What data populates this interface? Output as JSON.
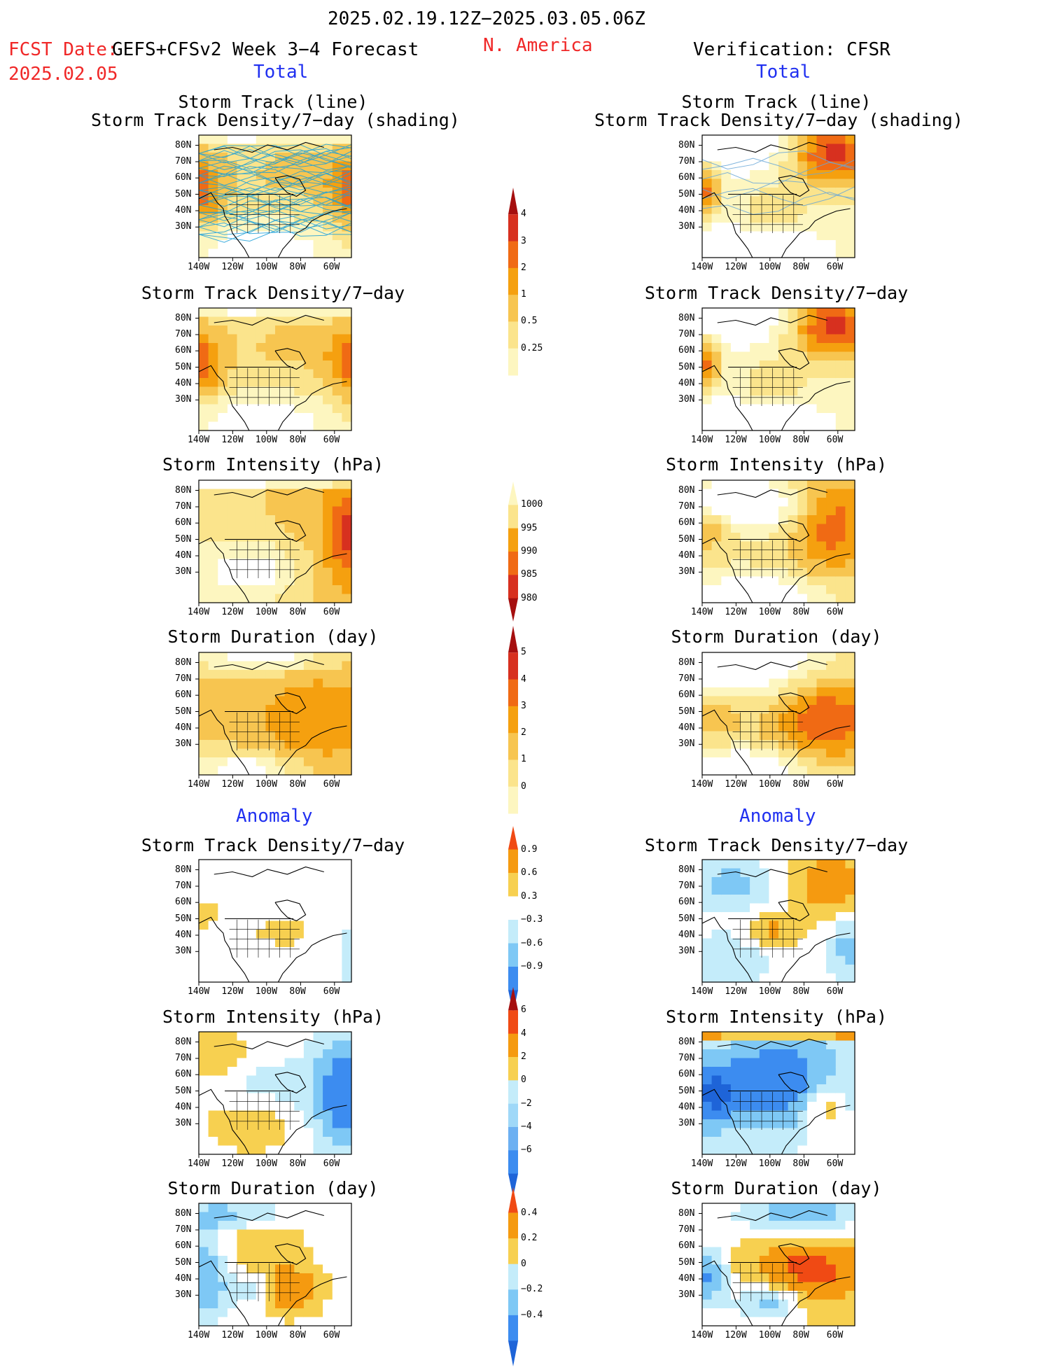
{
  "header": {
    "period": "2025.02.19.12Z−2025.03.05.06Z",
    "region": "N. America",
    "fcst_label": "FCST Date:",
    "fcst_model": "GEFS+CFSv2 Week 3−4 Forecast",
    "fcst_date": "2025.02.05",
    "verification": "Verification: CFSR"
  },
  "sections": {
    "total": "Total",
    "anomaly": "Anomaly"
  },
  "panel_titles": {
    "track_line": "Storm Track (line)",
    "track_shading": "Storm Track Density/7−day (shading)",
    "density": "Storm Track Density/7−day",
    "intensity": "Storm Intensity (hPa)",
    "duration": "Storm Duration (day)"
  },
  "axes": {
    "lat_ticks": [
      "80N",
      "70N",
      "60N",
      "50N",
      "40N",
      "30N"
    ],
    "lon_ticks": [
      "140W",
      "120W",
      "100W",
      "80W",
      "60W"
    ]
  },
  "chart_data": [
    {
      "type": "heatmap",
      "column": "GEFS+CFSv2 Week 3−4 Forecast",
      "section": "Total",
      "title": "Storm Track (line) / Storm Track Density/7−day (shading)",
      "xlim": [
        "140W",
        "50W"
      ],
      "ylim": [
        "25N",
        "85N"
      ]
    },
    {
      "type": "heatmap",
      "column": "Verification: CFSR",
      "section": "Total",
      "title": "Storm Track (line) / Storm Track Density/7−day (shading)",
      "xlim": [
        "140W",
        "50W"
      ],
      "ylim": [
        "25N",
        "85N"
      ]
    },
    {
      "type": "heatmap",
      "column": "GEFS+CFSv2 Week 3−4 Forecast",
      "section": "Total",
      "title": "Storm Track Density/7−day"
    },
    {
      "type": "heatmap",
      "column": "Verification: CFSR",
      "section": "Total",
      "title": "Storm Track Density/7−day"
    },
    {
      "type": "heatmap",
      "column": "GEFS+CFSv2 Week 3−4 Forecast",
      "section": "Total",
      "title": "Storm Intensity (hPa)"
    },
    {
      "type": "heatmap",
      "column": "Verification: CFSR",
      "section": "Total",
      "title": "Storm Intensity (hPa)"
    },
    {
      "type": "heatmap",
      "column": "GEFS+CFSv2 Week 3−4 Forecast",
      "section": "Total",
      "title": "Storm Duration (day)"
    },
    {
      "type": "heatmap",
      "column": "Verification: CFSR",
      "section": "Total",
      "title": "Storm Duration (day)"
    },
    {
      "type": "heatmap",
      "column": "GEFS+CFSv2 Week 3−4 Forecast",
      "section": "Anomaly",
      "title": "Storm Track Density/7−day"
    },
    {
      "type": "heatmap",
      "column": "Verification: CFSR",
      "section": "Anomaly",
      "title": "Storm Track Density/7−day"
    },
    {
      "type": "heatmap",
      "column": "GEFS+CFSv2 Week 3−4 Forecast",
      "section": "Anomaly",
      "title": "Storm Intensity (hPa)"
    },
    {
      "type": "heatmap",
      "column": "Verification: CFSR",
      "section": "Anomaly",
      "title": "Storm Intensity (hPa)"
    },
    {
      "type": "heatmap",
      "column": "GEFS+CFSv2 Week 3−4 Forecast",
      "section": "Anomaly",
      "title": "Storm Duration (day)"
    },
    {
      "type": "heatmap",
      "column": "Verification: CFSR",
      "section": "Anomaly",
      "title": "Storm Duration (day)"
    }
  ],
  "colorbars": [
    {
      "id": "density_total",
      "labels": [
        "4",
        "3",
        "2",
        "1",
        "0.5",
        "0.25"
      ],
      "colors": [
        "#a50f0f",
        "#d7301f",
        "#f06a14",
        "#f5a00f",
        "#f7c550",
        "#fbe48c",
        "#fdf6c0"
      ]
    },
    {
      "id": "intensity_total",
      "labels": [
        "1000",
        "995",
        "990",
        "985",
        "980"
      ],
      "colors": [
        "#fdf6c0",
        "#fbe48c",
        "#f5a00f",
        "#f06a14",
        "#d7301f",
        "#a50f0f"
      ]
    },
    {
      "id": "duration_total",
      "labels": [
        "5",
        "4",
        "3",
        "2",
        "1",
        "0"
      ],
      "colors": [
        "#a50f0f",
        "#d7301f",
        "#f06a14",
        "#f5a00f",
        "#f7c550",
        "#fbe48c",
        "#fdf6c0"
      ]
    },
    {
      "id": "density_anom",
      "labels": [
        "0.9",
        "0.6",
        "0.3",
        "−0.3",
        "−0.6",
        "−0.9"
      ],
      "colors": [
        "#f04a14",
        "#f59a10",
        "#f7d050",
        "#ffffff",
        "#c4ecfa",
        "#7ec8f5",
        "#3c8cf0",
        "#1e64d8"
      ]
    },
    {
      "id": "intensity_anom",
      "labels": [
        "6",
        "4",
        "2",
        "0",
        "−2",
        "−4",
        "−6"
      ],
      "colors": [
        "#a50f0f",
        "#f04a14",
        "#f59a10",
        "#f7d050",
        "#c4ecfa",
        "#9fd8f8",
        "#6cb0f2",
        "#3c8cf0",
        "#1e64d8"
      ]
    },
    {
      "id": "duration_anom",
      "labels": [
        "0.4",
        "0.2",
        "0",
        "−0.2",
        "−0.4"
      ],
      "colors": [
        "#f04a14",
        "#f59a10",
        "#f7d050",
        "#c4ecfa",
        "#7ec8f5",
        "#3c8cf0",
        "#1e64d8"
      ]
    }
  ]
}
